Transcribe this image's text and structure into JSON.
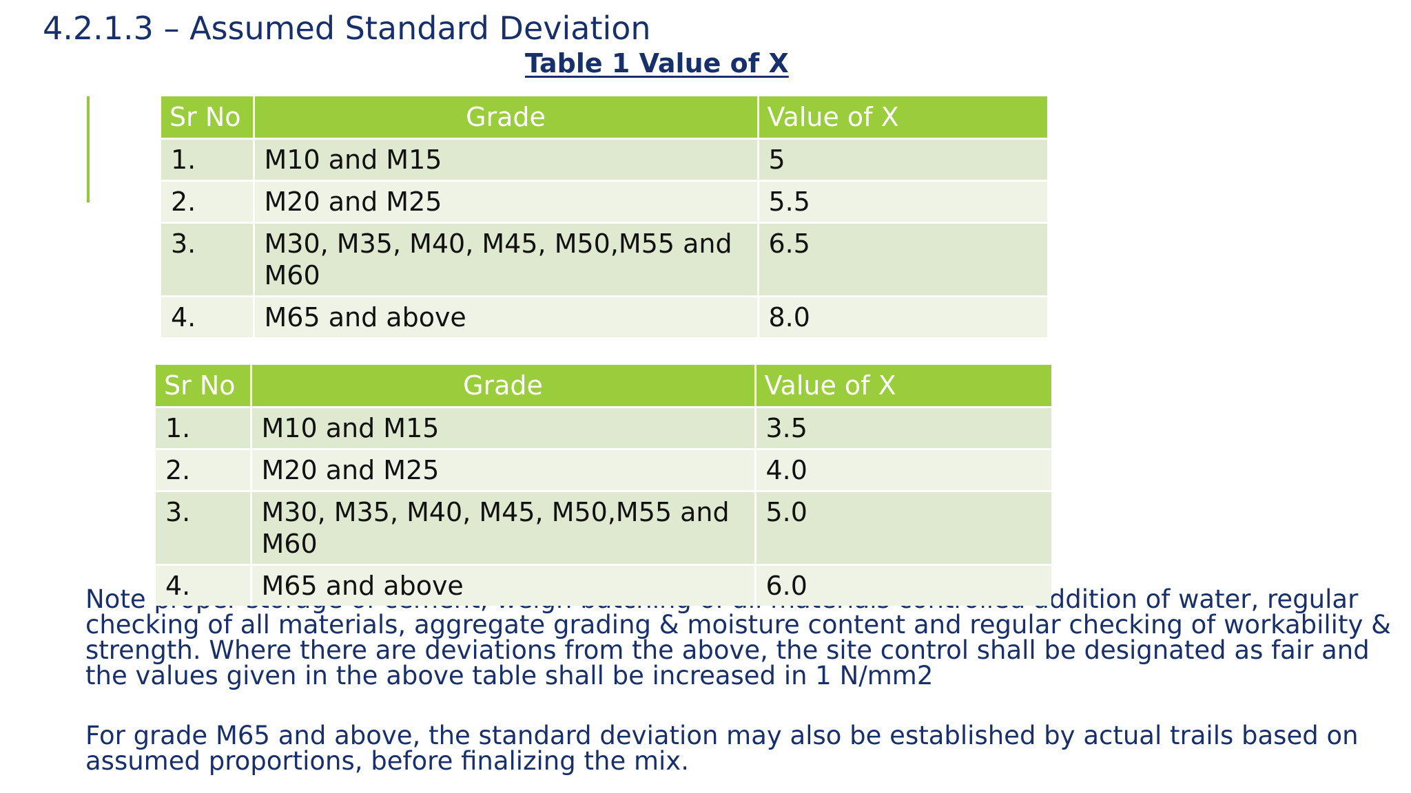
{
  "slide": {
    "title": "4.2.1.3 – Assumed Standard Deviation",
    "caption": "Table 1 Value of X"
  },
  "colors": {
    "title_text": "#17306b",
    "header_fill": "#9acd3c",
    "row_fill_dark": "#dfe9cf",
    "row_fill_light": "#eef3e6",
    "accent_bar": "#92c83e"
  },
  "table_1": {
    "headers": [
      "Sr No",
      "Grade",
      "Value of X"
    ],
    "rows": [
      {
        "sr": "1.",
        "grade": "M10 and M15",
        "value": "5"
      },
      {
        "sr": "2.",
        "grade": "M20 and M25",
        "value": "5.5"
      },
      {
        "sr": "3.",
        "grade": "M30, M35, M40, M45, M50,M55 and M60",
        "value": "6.5"
      },
      {
        "sr": "4.",
        "grade": "M65 and above",
        "value": "8.0"
      }
    ]
  },
  "table_2": {
    "headers": [
      "Sr No",
      "Grade",
      "Value of X"
    ],
    "rows": [
      {
        "sr": "1.",
        "grade": "M10 and M15",
        "value": "3.5"
      },
      {
        "sr": "2.",
        "grade": "M20 and M25",
        "value": "4.0"
      },
      {
        "sr": "3.",
        "grade": "M30, M35, M40, M45, M50,M55 and M60",
        "value": "5.0"
      },
      {
        "sr": "4.",
        "grade": "M65 and above",
        "value": "6.0"
      }
    ]
  },
  "notes": {
    "paragraph_1": "Note proper storage of cement, weigh batching of all materials controlled addition of water, regular checking of all materials, aggregate grading & moisture content and regular checking of workability & strength. Where there are deviations from the above, the site control shall be designated as fair and the values given in the above table shall be increased in 1 N/mm2",
    "paragraph_2": "For grade M65 and above, the standard deviation may also be established by actual trails based on assumed proportions, before finalizing the mix."
  }
}
